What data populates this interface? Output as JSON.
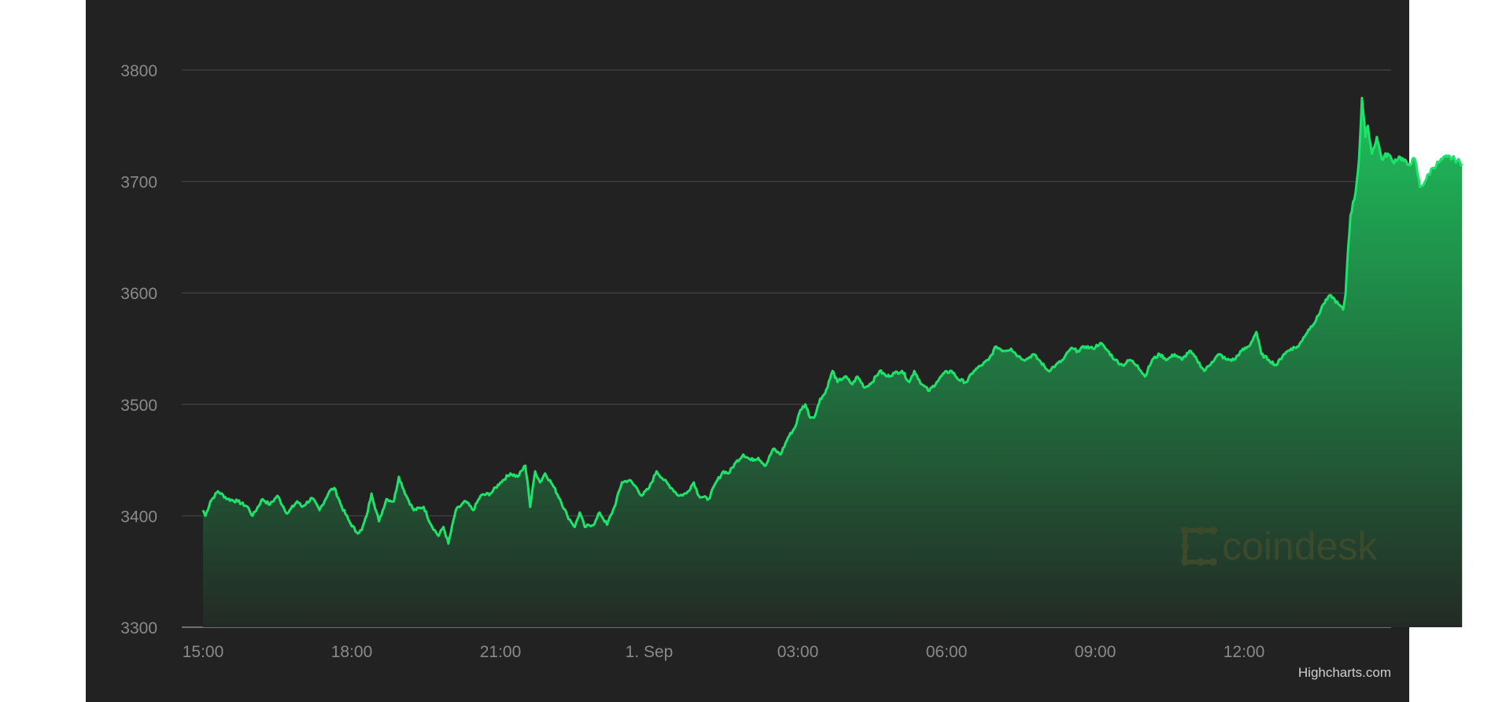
{
  "chart_data": {
    "type": "area",
    "ylim": [
      3300,
      3800
    ],
    "yticks": [
      "3800",
      "3700",
      "3600",
      "3500",
      "3400",
      "3300"
    ],
    "ytick_values": [
      3800,
      3700,
      3600,
      3500,
      3400,
      3300
    ],
    "xticks": [
      "15:00",
      "18:00",
      "21:00",
      "1. Sep",
      "03:00",
      "06:00",
      "09:00",
      "12:00"
    ],
    "xtick_hours": [
      0,
      3,
      6,
      9,
      12,
      15,
      18,
      21
    ],
    "x_range_hours": [
      -0.2,
      23.8
    ],
    "grid": true,
    "colors": {
      "line": "#1ee36b",
      "fill_top": "#1ec05c",
      "fill_bottom": "#232a25",
      "grid": "#4a4a4a",
      "background": "#222222"
    },
    "series": [
      {
        "anchors": [
          [
            0.0,
            3405
          ],
          [
            0.05,
            3400
          ],
          [
            0.15,
            3413
          ],
          [
            0.3,
            3422
          ],
          [
            0.5,
            3415
          ],
          [
            0.7,
            3413
          ],
          [
            0.9,
            3408
          ],
          [
            1.0,
            3400
          ],
          [
            1.2,
            3415
          ],
          [
            1.35,
            3410
          ],
          [
            1.5,
            3418
          ],
          [
            1.7,
            3402
          ],
          [
            1.9,
            3413
          ],
          [
            2.0,
            3408
          ],
          [
            2.2,
            3416
          ],
          [
            2.35,
            3405
          ],
          [
            2.55,
            3422
          ],
          [
            2.65,
            3425
          ],
          [
            2.8,
            3408
          ],
          [
            2.95,
            3395
          ],
          [
            3.1,
            3385
          ],
          [
            3.2,
            3387
          ],
          [
            3.3,
            3400
          ],
          [
            3.4,
            3420
          ],
          [
            3.55,
            3395
          ],
          [
            3.7,
            3415
          ],
          [
            3.85,
            3413
          ],
          [
            3.95,
            3435
          ],
          [
            4.1,
            3418
          ],
          [
            4.25,
            3405
          ],
          [
            4.45,
            3408
          ],
          [
            4.6,
            3392
          ],
          [
            4.75,
            3382
          ],
          [
            4.85,
            3390
          ],
          [
            4.95,
            3375
          ],
          [
            5.1,
            3405
          ],
          [
            5.3,
            3413
          ],
          [
            5.45,
            3405
          ],
          [
            5.6,
            3418
          ],
          [
            5.8,
            3420
          ],
          [
            6.0,
            3430
          ],
          [
            6.2,
            3438
          ],
          [
            6.35,
            3435
          ],
          [
            6.5,
            3445
          ],
          [
            6.55,
            3430
          ],
          [
            6.6,
            3408
          ],
          [
            6.7,
            3440
          ],
          [
            6.8,
            3430
          ],
          [
            6.9,
            3438
          ],
          [
            7.05,
            3428
          ],
          [
            7.2,
            3415
          ],
          [
            7.35,
            3400
          ],
          [
            7.5,
            3390
          ],
          [
            7.6,
            3403
          ],
          [
            7.7,
            3390
          ],
          [
            7.9,
            3393
          ],
          [
            8.0,
            3403
          ],
          [
            8.15,
            3392
          ],
          [
            8.3,
            3408
          ],
          [
            8.45,
            3430
          ],
          [
            8.6,
            3432
          ],
          [
            8.75,
            3425
          ],
          [
            8.85,
            3418
          ],
          [
            9.0,
            3425
          ],
          [
            9.15,
            3440
          ],
          [
            9.3,
            3432
          ],
          [
            9.45,
            3425
          ],
          [
            9.6,
            3418
          ],
          [
            9.75,
            3420
          ],
          [
            9.9,
            3430
          ],
          [
            10.0,
            3418
          ],
          [
            10.2,
            3415
          ],
          [
            10.35,
            3430
          ],
          [
            10.5,
            3440
          ],
          [
            10.6,
            3438
          ],
          [
            10.75,
            3448
          ],
          [
            10.9,
            3455
          ],
          [
            11.05,
            3450
          ],
          [
            11.2,
            3452
          ],
          [
            11.35,
            3445
          ],
          [
            11.5,
            3460
          ],
          [
            11.65,
            3455
          ],
          [
            11.8,
            3470
          ],
          [
            11.95,
            3480
          ],
          [
            12.05,
            3495
          ],
          [
            12.15,
            3500
          ],
          [
            12.25,
            3488
          ],
          [
            12.35,
            3490
          ],
          [
            12.45,
            3505
          ],
          [
            12.55,
            3510
          ],
          [
            12.7,
            3530
          ],
          [
            12.8,
            3520
          ],
          [
            12.95,
            3525
          ],
          [
            13.1,
            3518
          ],
          [
            13.2,
            3525
          ],
          [
            13.35,
            3515
          ],
          [
            13.5,
            3520
          ],
          [
            13.65,
            3530
          ],
          [
            13.8,
            3525
          ],
          [
            13.95,
            3528
          ],
          [
            14.1,
            3530
          ],
          [
            14.25,
            3520
          ],
          [
            14.35,
            3530
          ],
          [
            14.5,
            3518
          ],
          [
            14.65,
            3512
          ],
          [
            14.8,
            3520
          ],
          [
            14.95,
            3528
          ],
          [
            15.1,
            3530
          ],
          [
            15.25,
            3522
          ],
          [
            15.4,
            3520
          ],
          [
            15.55,
            3530
          ],
          [
            15.7,
            3535
          ],
          [
            15.85,
            3540
          ],
          [
            16.0,
            3552
          ],
          [
            16.15,
            3548
          ],
          [
            16.3,
            3550
          ],
          [
            16.45,
            3543
          ],
          [
            16.6,
            3540
          ],
          [
            16.75,
            3545
          ],
          [
            16.9,
            3538
          ],
          [
            17.05,
            3530
          ],
          [
            17.2,
            3535
          ],
          [
            17.35,
            3540
          ],
          [
            17.5,
            3550
          ],
          [
            17.65,
            3548
          ],
          [
            17.8,
            3552
          ],
          [
            17.95,
            3550
          ],
          [
            18.1,
            3555
          ],
          [
            18.25,
            3548
          ],
          [
            18.4,
            3540
          ],
          [
            18.55,
            3535
          ],
          [
            18.7,
            3540
          ],
          [
            18.85,
            3535
          ],
          [
            19.0,
            3525
          ],
          [
            19.15,
            3540
          ],
          [
            19.3,
            3545
          ],
          [
            19.45,
            3540
          ],
          [
            19.6,
            3545
          ],
          [
            19.75,
            3540
          ],
          [
            19.9,
            3548
          ],
          [
            20.05,
            3540
          ],
          [
            20.2,
            3530
          ],
          [
            20.35,
            3538
          ],
          [
            20.5,
            3545
          ],
          [
            20.65,
            3540
          ],
          [
            20.8,
            3540
          ],
          [
            20.95,
            3548
          ],
          [
            21.1,
            3552
          ],
          [
            21.25,
            3565
          ],
          [
            21.35,
            3545
          ],
          [
            21.5,
            3540
          ],
          [
            21.65,
            3535
          ],
          [
            21.8,
            3545
          ],
          [
            21.95,
            3550
          ],
          [
            22.1,
            3552
          ],
          [
            22.2,
            3560
          ],
          [
            22.35,
            3570
          ],
          [
            22.45,
            3575
          ],
          [
            22.6,
            3590
          ],
          [
            22.75,
            3598
          ],
          [
            22.9,
            3590
          ],
          [
            23.0,
            3585
          ],
          [
            23.05,
            3600
          ],
          [
            23.1,
            3640
          ],
          [
            23.15,
            3670
          ],
          [
            23.25,
            3690
          ],
          [
            23.32,
            3720
          ],
          [
            23.38,
            3775
          ],
          [
            23.45,
            3740
          ],
          [
            23.5,
            3750
          ],
          [
            23.58,
            3725
          ],
          [
            23.68,
            3740
          ],
          [
            23.78,
            3720
          ],
          [
            23.9,
            3725
          ],
          [
            24.0,
            3718
          ],
          [
            24.15,
            3722
          ],
          [
            24.3,
            3715
          ],
          [
            24.45,
            3720
          ],
          [
            24.55,
            3695
          ],
          [
            24.65,
            3700
          ],
          [
            24.8,
            3712
          ],
          [
            24.95,
            3718
          ],
          [
            25.1,
            3722
          ],
          [
            25.25,
            3720
          ],
          [
            25.4,
            3716
          ]
        ]
      }
    ],
    "watermark": "coindesk",
    "credit": "Highcharts.com"
  }
}
